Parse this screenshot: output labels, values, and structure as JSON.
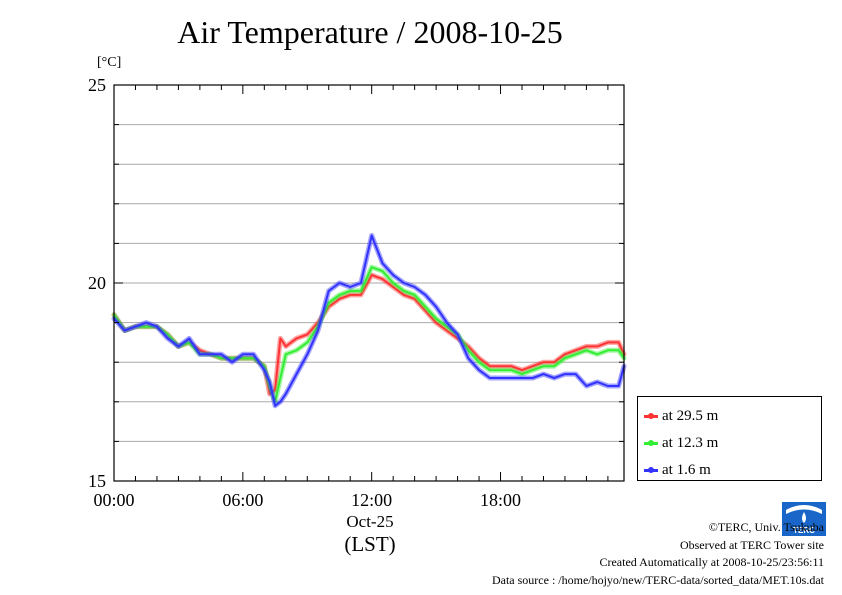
{
  "chart_data": {
    "type": "line",
    "title": "Air Temperature / 2008-10-25",
    "ylabel": "[°C]",
    "xlabel": "(LST)",
    "x_date_label": "Oct-25",
    "xlim": [
      0,
      23.75
    ],
    "ylim": [
      15,
      25
    ],
    "yticks": [
      15,
      20,
      25
    ],
    "xticks": [
      {
        "hour": 0,
        "label": "00:00"
      },
      {
        "hour": 6,
        "label": "06:00"
      },
      {
        "hour": 12,
        "label": "12:00"
      },
      {
        "hour": 18,
        "label": "18:00"
      }
    ],
    "grid_y_step": 1,
    "grid": true,
    "legend_position": "bottom-right outside",
    "hours": [
      0,
      0.5,
      1,
      1.5,
      2,
      2.5,
      3,
      3.5,
      4,
      4.5,
      5,
      5.5,
      6,
      6.5,
      7,
      7.25,
      7.5,
      7.75,
      8,
      8.5,
      9,
      9.5,
      10,
      10.5,
      11,
      11.5,
      12,
      12.5,
      13,
      13.5,
      14,
      14.5,
      15,
      15.5,
      16,
      16.5,
      17,
      17.5,
      18,
      18.5,
      19,
      19.5,
      20,
      20.5,
      21,
      21.5,
      22,
      22.5,
      23,
      23.5,
      23.75
    ],
    "series": [
      {
        "name": "at 29.5 m",
        "color": "#ff3333",
        "values": [
          19.2,
          18.8,
          18.9,
          18.9,
          18.9,
          18.7,
          18.4,
          18.5,
          18.3,
          18.2,
          18.1,
          18.1,
          18.1,
          18.1,
          17.9,
          17.2,
          17.3,
          18.6,
          18.4,
          18.6,
          18.7,
          19.0,
          19.4,
          19.6,
          19.7,
          19.7,
          20.2,
          20.1,
          19.9,
          19.7,
          19.6,
          19.3,
          19.0,
          18.8,
          18.6,
          18.4,
          18.1,
          17.9,
          17.9,
          17.9,
          17.8,
          17.9,
          18.0,
          18.0,
          18.2,
          18.3,
          18.4,
          18.4,
          18.5,
          18.5,
          18.2
        ]
      },
      {
        "name": "at 12.3 m",
        "color": "#33ee33",
        "values": [
          19.2,
          18.8,
          18.9,
          18.9,
          18.9,
          18.7,
          18.4,
          18.5,
          18.2,
          18.2,
          18.1,
          18.1,
          18.1,
          18.1,
          17.9,
          17.4,
          17.0,
          17.6,
          18.2,
          18.3,
          18.5,
          18.9,
          19.5,
          19.7,
          19.8,
          19.8,
          20.4,
          20.3,
          20.0,
          19.8,
          19.7,
          19.4,
          19.1,
          18.9,
          18.7,
          18.3,
          18.0,
          17.8,
          17.8,
          17.8,
          17.7,
          17.8,
          17.9,
          17.9,
          18.1,
          18.2,
          18.3,
          18.2,
          18.3,
          18.3,
          18.1
        ]
      },
      {
        "name": "at 1.6 m",
        "color": "#3333ff",
        "values": [
          19.1,
          18.8,
          18.9,
          19.0,
          18.9,
          18.6,
          18.4,
          18.6,
          18.2,
          18.2,
          18.2,
          18.0,
          18.2,
          18.2,
          17.8,
          17.5,
          16.9,
          17.0,
          17.2,
          17.7,
          18.2,
          18.8,
          19.8,
          20.0,
          19.9,
          20.0,
          21.2,
          20.5,
          20.2,
          20.0,
          19.9,
          19.7,
          19.4,
          19.0,
          18.7,
          18.1,
          17.8,
          17.6,
          17.6,
          17.6,
          17.6,
          17.6,
          17.7,
          17.6,
          17.7,
          17.7,
          17.4,
          17.5,
          17.4,
          17.4,
          17.9
        ]
      }
    ]
  },
  "credits": {
    "copyright": "©TERC, Univ. Tsukuba",
    "site": "Observed at TERC Tower site",
    "created": "Created Automatically at 2008-10-25/23:56:11",
    "source": "Data source : /home/hojyo/new/TERC-data/sorted_data/MET.10s.dat"
  },
  "logo": {
    "text": "TERC",
    "color": "#1a66c8"
  }
}
